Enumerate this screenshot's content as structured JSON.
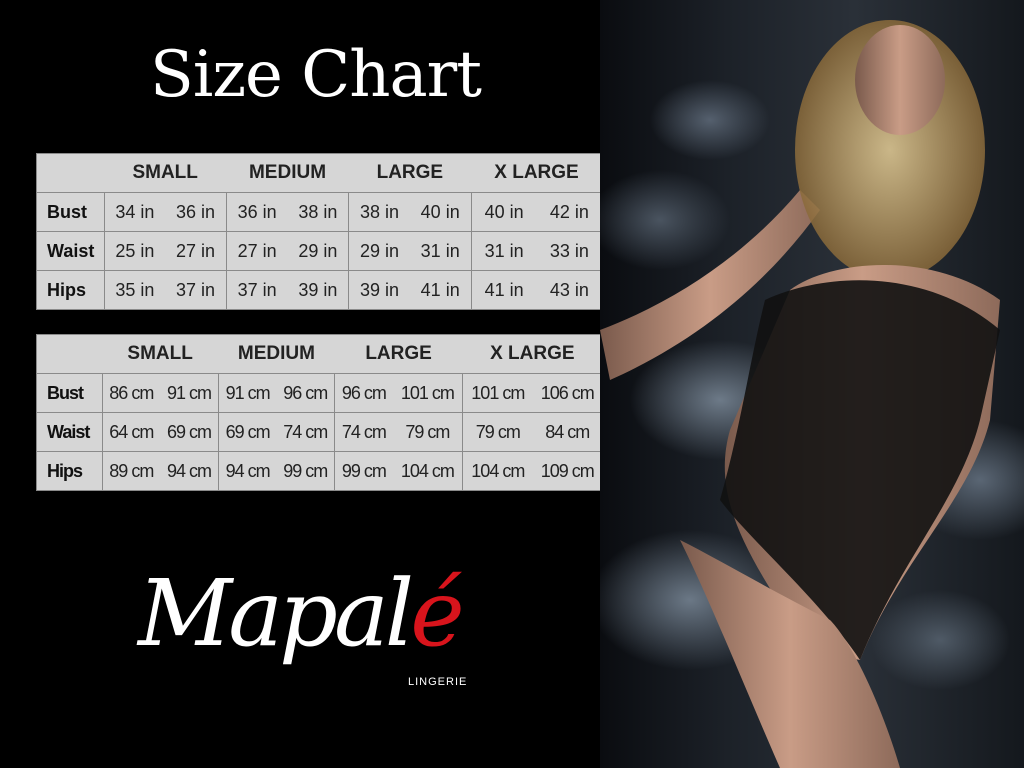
{
  "title": "Size Chart",
  "sizes": [
    "SMALL",
    "MEDIUM",
    "LARGE",
    "X LARGE"
  ],
  "inches": [
    {
      "label": "Bust",
      "values": [
        "34 in",
        "36 in",
        "36 in",
        "38 in",
        "38 in",
        "40 in",
        "40 in",
        "42 in"
      ]
    },
    {
      "label": "Waist",
      "values": [
        "25 in",
        "27 in",
        "27 in",
        "29 in",
        "29 in",
        "31 in",
        "31 in",
        "33 in"
      ]
    },
    {
      "label": "Hips",
      "values": [
        "35 in",
        "37 in",
        "37 in",
        "39 in",
        "39 in",
        "41 in",
        "41 in",
        "43 in"
      ]
    }
  ],
  "centimeters": [
    {
      "label": "Bust",
      "values": [
        "86 cm",
        "91 cm",
        "91 cm",
        "96 cm",
        "96 cm",
        "101 cm",
        "101 cm",
        "106 cm"
      ]
    },
    {
      "label": "Waist",
      "values": [
        "64 cm",
        "69 cm",
        "69 cm",
        "74 cm",
        "74 cm",
        "79 cm",
        "79 cm",
        "84 cm"
      ]
    },
    {
      "label": "Hips",
      "values": [
        "89 cm",
        "94 cm",
        "94 cm",
        "99 cm",
        "99 cm",
        "104 cm",
        "104 cm",
        "109 cm"
      ]
    }
  ],
  "brand": {
    "name_main": "Mapal",
    "name_accent": "é",
    "tagline": "LINGERIE",
    "accent_color": "#d8141c"
  },
  "colors": {
    "background": "#000000",
    "table_bg": "#d6d6d6"
  }
}
